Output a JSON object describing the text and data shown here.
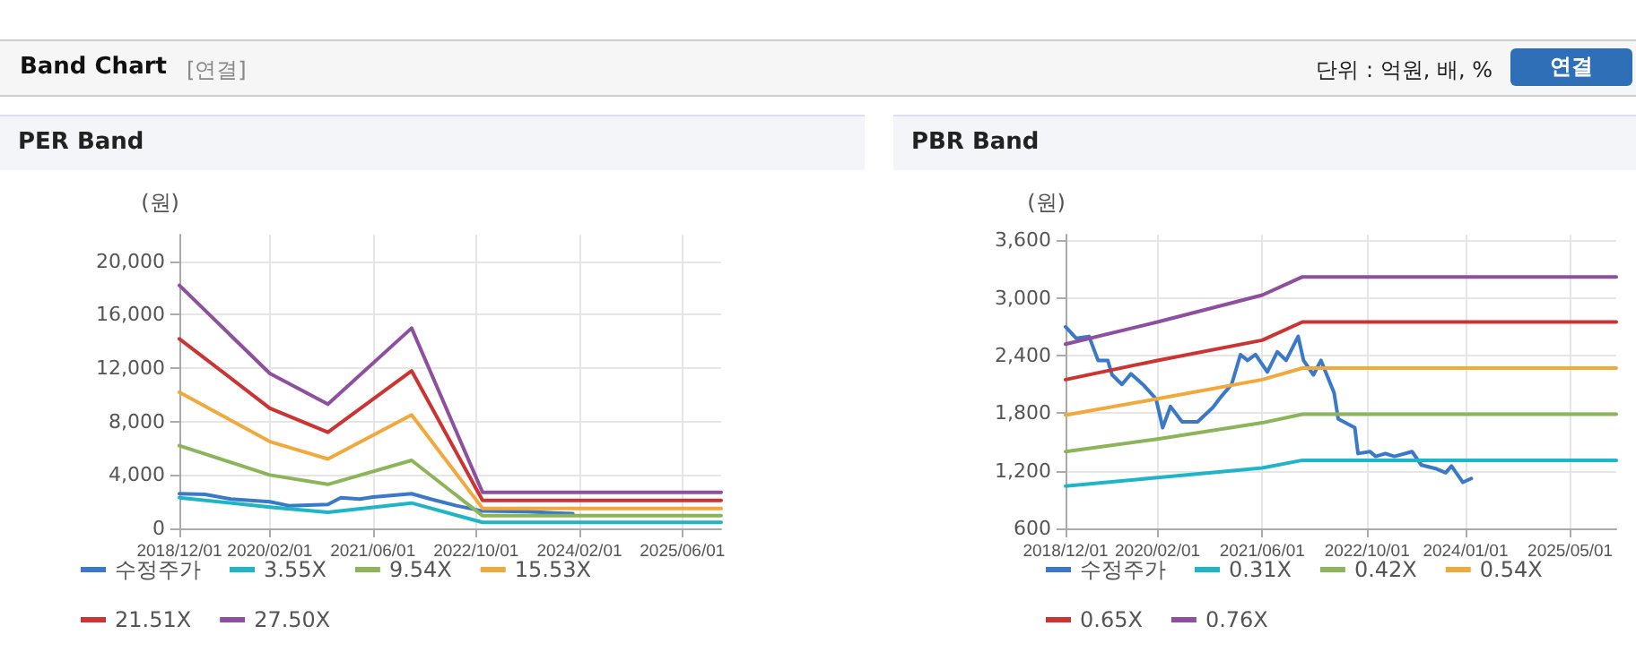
{
  "chart_data": [
    {
      "type": "other",
      "title": "Band Chart",
      "annotations": [
        "[연결]",
        "단위 : 억원, 배, %",
        "연결"
      ]
    },
    {
      "type": "line",
      "title": "PER Band",
      "ylabel": "(원)",
      "legend": "bottom",
      "grid": true,
      "marker": "none",
      "line_style": "solid",
      "xlim": [
        "2018-12-01",
        "2025-12-01"
      ],
      "xticks": [
        {
          "value": "2018-12-01",
          "label": "2018/12/01"
        },
        {
          "value": "2020-02-01",
          "label": "2020/02/01"
        },
        {
          "value": "2021-06-01",
          "label": "2021/06/01"
        },
        {
          "value": "2022-10-01",
          "label": "2022/10/01"
        },
        {
          "value": "2024-02-01",
          "label": "2024/02/01"
        },
        {
          "value": "2025-06-01",
          "label": "2025/06/01"
        }
      ],
      "ylim": [
        0,
        22000
      ],
      "yticks": [
        0,
        {
          "value": 4000,
          "label": "4,000"
        },
        {
          "value": 8000,
          "label": "8,000"
        },
        {
          "value": 12000,
          "label": "12,000"
        },
        {
          "value": 16000,
          "label": "16,000"
        },
        {
          "value": 20000,
          "label": "20,000"
        }
      ],
      "series": [
        {
          "name": "수정주가",
          "color": "#3a78c9",
          "x": [
            "2018-12-01",
            "2019-04-01",
            "2019-08-01",
            "2020-02-01",
            "2020-05-01",
            "2020-11-01",
            "2021-01-01",
            "2021-04-01",
            "2021-06-01",
            "2021-12-01",
            "2022-03-01",
            "2022-07-01",
            "2022-11-01",
            "2023-06-01",
            "2023-10-01",
            "2024-01-01"
          ],
          "values": [
            2600,
            2550,
            2200,
            2000,
            1700,
            1800,
            2300,
            2200,
            2350,
            2600,
            2200,
            1700,
            1300,
            1250,
            1150,
            1100
          ]
        },
        {
          "name": "3.55X",
          "color": "#1fb5c8",
          "x": [
            "2018-12-01",
            "2020-02-01",
            "2020-11-01",
            "2021-12-01",
            "2022-11-01",
            "2025-12-01"
          ],
          "values": [
            2300,
            1600,
            1200,
            1900,
            450,
            450
          ]
        },
        {
          "name": "9.54X",
          "color": "#8cb55a",
          "x": [
            "2018-12-01",
            "2020-02-01",
            "2020-11-01",
            "2021-12-01",
            "2022-11-01",
            "2025-12-01"
          ],
          "values": [
            6200,
            4000,
            3300,
            5100,
            950,
            950
          ]
        },
        {
          "name": "15.53X",
          "color": "#f2a93b",
          "x": [
            "2018-12-01",
            "2020-02-01",
            "2020-11-01",
            "2021-12-01",
            "2022-11-01",
            "2025-12-01"
          ],
          "values": [
            10200,
            6500,
            5200,
            8500,
            1500,
            1500
          ]
        },
        {
          "name": "21.51X",
          "color": "#cc3333",
          "x": [
            "2018-12-01",
            "2020-02-01",
            "2020-11-01",
            "2021-12-01",
            "2022-11-01",
            "2025-12-01"
          ],
          "values": [
            14200,
            9000,
            7200,
            11800,
            2100,
            2100
          ]
        },
        {
          "name": "27.50X",
          "color": "#8e4f9e",
          "x": [
            "2018-12-01",
            "2020-02-01",
            "2020-11-01",
            "2021-12-01",
            "2022-11-01",
            "2025-12-01"
          ],
          "values": [
            18200,
            11600,
            9300,
            15000,
            2700,
            2700
          ]
        }
      ]
    },
    {
      "type": "line",
      "title": "PBR Band",
      "ylabel": "(원)",
      "legend": "bottom",
      "grid": true,
      "marker": "none",
      "line_style": "solid",
      "xlim": [
        "2018-12-01",
        "2025-12-01"
      ],
      "xticks": [
        {
          "value": "2018-12-01",
          "label": "2018/12/01"
        },
        {
          "value": "2020-02-01",
          "label": "2020/02/01"
        },
        {
          "value": "2021-06-01",
          "label": "2021/06/01"
        },
        {
          "value": "2022-10-01",
          "label": "2022/10/01"
        },
        {
          "value": "2024-01-01",
          "label": "2024/01/01"
        },
        {
          "value": "2025-05-01",
          "label": "2025/05/01"
        }
      ],
      "ylim": [
        600,
        3660
      ],
      "yticks": [
        600,
        {
          "value": 1200,
          "label": "1,200"
        },
        {
          "value": 1800,
          "label": "1,800"
        },
        {
          "value": 2400,
          "label": "2,400"
        },
        {
          "value": 3000,
          "label": "3,000"
        },
        {
          "value": 3600,
          "label": "3,600"
        }
      ],
      "series": [
        {
          "name": "수정주가",
          "color": "#3a78c9",
          "x": [
            "2018-12-01",
            "2019-01-20",
            "2019-03-20",
            "2019-05-01",
            "2019-06-15",
            "2019-07-05",
            "2019-08-20",
            "2019-10-01",
            "2019-11-25",
            "2020-01-25",
            "2020-02-25",
            "2020-04-01",
            "2020-05-25",
            "2020-08-05",
            "2020-10-15",
            "2020-11-25",
            "2021-01-10",
            "2021-02-20",
            "2021-03-25",
            "2021-05-01",
            "2021-06-25",
            "2021-08-10",
            "2021-09-20",
            "2021-11-15",
            "2021-12-10",
            "2022-01-25",
            "2022-03-01",
            "2022-05-01",
            "2022-05-20",
            "2022-08-05",
            "2022-08-20",
            "2022-10-15",
            "2022-11-10",
            "2022-12-25",
            "2023-02-05",
            "2023-04-28",
            "2023-06-10",
            "2023-08-20",
            "2023-10-01",
            "2023-10-28",
            "2023-12-20",
            "2024-01-28"
          ],
          "values": [
            2700,
            2580,
            2600,
            2350,
            2350,
            2200,
            2100,
            2210,
            2100,
            1950,
            1650,
            1870,
            1710,
            1710,
            1860,
            1980,
            2100,
            2410,
            2350,
            2410,
            2230,
            2440,
            2350,
            2600,
            2350,
            2200,
            2350,
            2010,
            1740,
            1650,
            1380,
            1400,
            1350,
            1380,
            1350,
            1400,
            1260,
            1220,
            1180,
            1250,
            1080,
            1120
          ]
        },
        {
          "name": "0.31X",
          "color": "#1fb5c8",
          "x": [
            "2018-12-01",
            "2020-02-01",
            "2021-06-01",
            "2021-12-05",
            "2025-12-01"
          ],
          "values": [
            1040,
            1130,
            1230,
            1310,
            1310
          ]
        },
        {
          "name": "0.42X",
          "color": "#8cb55a",
          "x": [
            "2018-12-01",
            "2020-02-01",
            "2021-06-01",
            "2021-12-05",
            "2025-12-01"
          ],
          "values": [
            1400,
            1530,
            1700,
            1790,
            1790
          ]
        },
        {
          "name": "0.54X",
          "color": "#f2a93b",
          "x": [
            "2018-12-01",
            "2020-02-01",
            "2021-06-01",
            "2021-12-05",
            "2025-12-01"
          ],
          "values": [
            1780,
            1950,
            2150,
            2270,
            2270
          ]
        },
        {
          "name": "0.65X",
          "color": "#cc3333",
          "x": [
            "2018-12-01",
            "2020-02-01",
            "2021-06-01",
            "2021-12-05",
            "2025-12-01"
          ],
          "values": [
            2150,
            2350,
            2560,
            2750,
            2750
          ]
        },
        {
          "name": "0.76X",
          "color": "#8e4f9e",
          "x": [
            "2018-12-01",
            "2020-02-01",
            "2021-06-01",
            "2021-12-05",
            "2025-12-01"
          ],
          "values": [
            2520,
            2750,
            3030,
            3220,
            3220
          ]
        }
      ]
    }
  ]
}
